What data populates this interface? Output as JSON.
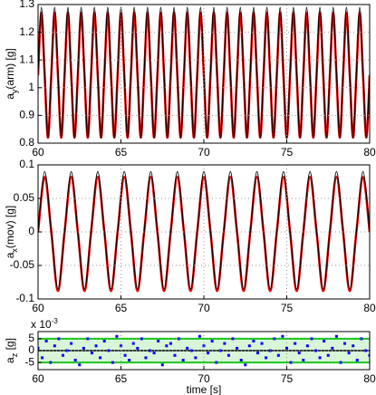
{
  "chart_data": [
    {
      "type": "line",
      "ylabel": {
        "base": "a",
        "sub": "y",
        "rest": "(arm) [g]"
      },
      "xlim": [
        60,
        80
      ],
      "xticks": [
        60,
        65,
        70,
        75,
        80
      ],
      "ylim": [
        0.8,
        1.3
      ],
      "yticks": [
        0.8,
        0.9,
        1,
        1.1,
        1.2,
        1.3
      ],
      "grid": true,
      "x": [
        60,
        60.2,
        60.4,
        60.6,
        60.8,
        61,
        61.2,
        61.4,
        61.6,
        61.8,
        62,
        62.2,
        62.4,
        62.6,
        62.8,
        63,
        63.2,
        63.4,
        63.6,
        63.8,
        64,
        64.2,
        64.4,
        64.6,
        64.8,
        65,
        65.2,
        65.4,
        65.6,
        65.8,
        66,
        66.2,
        66.4,
        66.6,
        66.8,
        67,
        67.2,
        67.4,
        67.6,
        67.8,
        68,
        68.2,
        68.4,
        68.6,
        68.8,
        69,
        69.2,
        69.4,
        69.6,
        69.8,
        70,
        70.2,
        70.4,
        70.6,
        70.8,
        71,
        71.2,
        71.4,
        71.6,
        71.8,
        72,
        72.2,
        72.4,
        72.6,
        72.8,
        73,
        73.2,
        73.4,
        73.6,
        73.8,
        74,
        74.2,
        74.4,
        74.6,
        74.8,
        75,
        75.2,
        75.4,
        75.6,
        75.8,
        76,
        76.2,
        76.4,
        76.6,
        76.8,
        77,
        77.2,
        77.4,
        77.6,
        77.8,
        78,
        78.2,
        78.4,
        78.6,
        78.8,
        79,
        79.2,
        79.4,
        79.6,
        79.8,
        80
      ],
      "series": [
        {
          "color": "#e00000",
          "width": 2.5,
          "values": [
            1.045,
            1.27,
            1.045,
            0.82,
            1.045,
            1.27,
            1.045,
            0.82,
            1.045,
            1.27,
            1.045,
            0.82,
            1.045,
            1.27,
            1.045,
            0.82,
            1.045,
            1.27,
            1.045,
            0.82,
            1.045,
            1.27,
            1.045,
            0.82,
            1.045,
            1.27,
            1.045,
            0.82,
            1.045,
            1.27,
            1.045,
            0.82,
            1.045,
            1.27,
            1.045,
            0.82,
            1.045,
            1.27,
            1.045,
            0.82,
            1.045,
            1.27,
            1.045,
            0.82,
            1.045,
            1.27,
            1.045,
            0.82,
            1.045,
            1.27,
            1.045,
            0.82,
            1.045,
            1.27,
            1.045,
            0.82,
            1.045,
            1.27,
            1.045,
            0.82,
            1.045,
            1.27,
            1.045,
            0.82,
            1.045,
            1.27,
            1.045,
            0.82,
            1.045,
            1.27,
            1.045,
            0.82,
            1.045,
            1.27,
            1.045,
            0.82,
            1.045,
            1.27,
            1.045,
            0.82,
            1.045,
            1.27,
            1.045,
            0.82,
            1.045,
            1.27,
            1.045,
            0.82,
            1.045,
            1.27,
            1.045,
            0.82,
            1.045,
            1.27,
            1.045,
            0.82,
            1.045,
            1.27,
            1.045,
            0.82,
            1.045
          ]
        },
        {
          "color": "#000000",
          "width": 1,
          "values": [
            1.055,
            1.29,
            1.055,
            0.82,
            1.055,
            1.29,
            1.055,
            0.82,
            1.055,
            1.29,
            1.055,
            0.82,
            1.055,
            1.29,
            1.055,
            0.82,
            1.055,
            1.29,
            1.055,
            0.82,
            1.055,
            1.29,
            1.055,
            0.82,
            1.055,
            1.29,
            1.055,
            0.82,
            1.055,
            1.29,
            1.055,
            0.82,
            1.055,
            1.29,
            1.055,
            0.82,
            1.055,
            1.29,
            1.055,
            0.82,
            1.055,
            1.29,
            1.055,
            0.82,
            1.055,
            1.29,
            1.055,
            0.82,
            1.055,
            1.29,
            1.055,
            0.82,
            1.055,
            1.29,
            1.055,
            0.82,
            1.055,
            1.29,
            1.055,
            0.82,
            1.055,
            1.29,
            1.055,
            0.82,
            1.055,
            1.29,
            1.055,
            0.82,
            1.055,
            1.29,
            1.055,
            0.82,
            1.055,
            1.29,
            1.055,
            0.82,
            1.055,
            1.29,
            1.055,
            0.82,
            1.055,
            1.29,
            1.055,
            0.82,
            1.055,
            1.29,
            1.055,
            0.82,
            1.055,
            1.29,
            1.055,
            0.82,
            1.055,
            1.29,
            1.055,
            0.82,
            1.055,
            1.29,
            1.055,
            0.82,
            1.055
          ]
        }
      ]
    },
    {
      "type": "line",
      "ylabel": {
        "base": "a",
        "sub": "x",
        "rest": "(mov) [g]"
      },
      "xlim": [
        60,
        80
      ],
      "xticks": [
        60,
        65,
        70,
        75,
        80
      ],
      "ylim": [
        -0.1,
        0.1
      ],
      "yticks": [
        -0.1,
        -0.05,
        0,
        0.05,
        0.1
      ],
      "grid": true,
      "x": [
        60,
        60.4,
        60.8,
        61.2,
        61.6,
        62,
        62.4,
        62.8,
        63.2,
        63.6,
        64,
        64.4,
        64.8,
        65.2,
        65.6,
        66,
        66.4,
        66.8,
        67.2,
        67.6,
        68,
        68.4,
        68.8,
        69.2,
        69.6,
        70,
        70.4,
        70.8,
        71.2,
        71.6,
        72,
        72.4,
        72.8,
        73.2,
        73.6,
        74,
        74.4,
        74.8,
        75.2,
        75.6,
        76,
        76.4,
        76.8,
        77.2,
        77.6,
        78,
        78.4,
        78.8,
        79.2,
        79.6,
        80
      ],
      "series": [
        {
          "color": "#e00000",
          "width": 2.5,
          "values": [
            0,
            0.082,
            0,
            -0.088,
            0,
            0.082,
            0,
            -0.088,
            0,
            0.082,
            0,
            -0.088,
            0,
            0.082,
            0,
            -0.088,
            0,
            0.082,
            0,
            -0.088,
            0,
            0.082,
            0,
            -0.088,
            0,
            0.082,
            0,
            -0.088,
            0,
            0.082,
            0,
            -0.088,
            0,
            0.082,
            0,
            -0.088,
            0,
            0.082,
            0,
            -0.088,
            0,
            0.082,
            0,
            -0.088,
            0,
            0.082,
            0,
            -0.088,
            0,
            0.082,
            0
          ]
        },
        {
          "color": "#000000",
          "width": 1,
          "values": [
            0,
            0.09,
            0,
            -0.085,
            0,
            0.09,
            0,
            -0.085,
            0,
            0.09,
            0,
            -0.085,
            0,
            0.09,
            0,
            -0.085,
            0,
            0.09,
            0,
            -0.085,
            0,
            0.09,
            0,
            -0.085,
            0,
            0.09,
            0,
            -0.085,
            0,
            0.09,
            0,
            -0.085,
            0,
            0.09,
            0,
            -0.085,
            0,
            0.09,
            0,
            -0.085,
            0,
            0.09,
            0,
            -0.085,
            0,
            0.09,
            0,
            -0.085,
            0,
            0.09,
            0
          ]
        }
      ]
    },
    {
      "type": "scatter",
      "ylabel": {
        "base": "a",
        "sub": "z",
        "rest": " [g]"
      },
      "y_multiplier": {
        "base": "x 10",
        "exp": "-3"
      },
      "xlabel": "time [s]",
      "xlim": [
        60,
        80
      ],
      "xticks": [
        60,
        65,
        70,
        75,
        80
      ],
      "ylim": [
        -8,
        8
      ],
      "yticks": [
        -5,
        0,
        5
      ],
      "grid": true,
      "threshold_lines": {
        "color": "#00cc00",
        "values": [
          -5,
          5
        ]
      },
      "x": [
        60,
        60.25,
        60.5,
        60.75,
        61,
        61.25,
        61.5,
        61.75,
        62,
        62.25,
        62.5,
        62.75,
        63,
        63.25,
        63.5,
        63.75,
        64,
        64.25,
        64.5,
        64.75,
        65,
        65.25,
        65.5,
        65.75,
        66,
        66.25,
        66.5,
        66.75,
        67,
        67.25,
        67.5,
        67.75,
        68,
        68.25,
        68.5,
        68.75,
        69,
        69.25,
        69.5,
        69.75,
        70,
        70.25,
        70.5,
        70.75,
        71,
        71.25,
        71.5,
        71.75,
        72,
        72.25,
        72.5,
        72.75,
        73,
        73.25,
        73.5,
        73.75,
        74,
        74.25,
        74.5,
        74.75,
        75,
        75.25,
        75.5,
        75.75,
        76,
        76.25,
        76.5,
        76.75,
        77,
        77.25,
        77.5,
        77.75,
        78,
        78.25,
        78.5,
        78.75,
        79,
        79.25,
        79.5,
        79.75,
        80
      ],
      "series": [
        {
          "color": "#0000ff",
          "values": [
            1,
            -3,
            4,
            -5,
            2,
            5,
            -2,
            0,
            3,
            -4,
            -6,
            1,
            5,
            -1,
            2,
            -3,
            4,
            0,
            -5,
            6,
            2,
            -2,
            -4,
            3,
            1,
            5,
            -3,
            0,
            -1,
            4,
            -6,
            2,
            3,
            -2,
            5,
            -4,
            1,
            0,
            -3,
            6,
            2,
            -1,
            4,
            -5,
            0,
            3,
            -2,
            5,
            1,
            -4,
            -6,
            2,
            4,
            -1,
            3,
            -3,
            0,
            5,
            -2,
            6,
            1,
            -5,
            3,
            -1,
            -4,
            2,
            5,
            0,
            -3,
            4,
            -2,
            1,
            6,
            -5,
            3,
            -1,
            2,
            -4,
            5,
            0,
            -2
          ]
        }
      ]
    }
  ]
}
